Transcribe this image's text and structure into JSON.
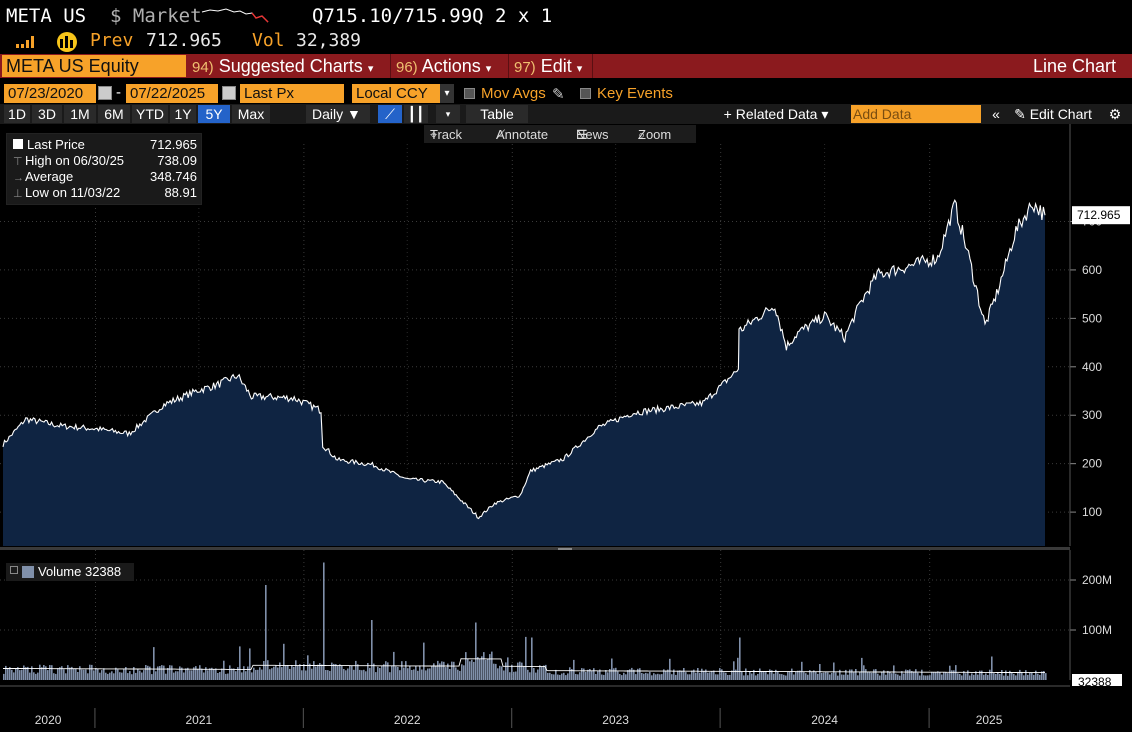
{
  "header": {
    "ticker": "META US",
    "currency_label": "$ Market",
    "bid_ask": "Q715.10/715.99Q",
    "size": "2 x 1",
    "prev_label": "Prev",
    "prev_value": "712.965",
    "vol_label": "Vol",
    "vol_value": "32,389"
  },
  "toolbar": {
    "security": "META US Equity",
    "suggested_num": "94)",
    "suggested_label": "Suggested Charts",
    "actions_num": "96)",
    "actions_label": "Actions",
    "edit_num": "97)",
    "edit_label": "Edit",
    "chart_type": "Line Chart"
  },
  "settings": {
    "start_date": "07/23/2020",
    "end_date": "07/22/2025",
    "dash": "-",
    "field": "Last Px",
    "currency": "Local CCY",
    "mov_avgs": "Mov Avgs",
    "key_events": "Key Events"
  },
  "periods": [
    "1D",
    "3D",
    "1M",
    "6M",
    "YTD",
    "1Y",
    "5Y",
    "Max"
  ],
  "active_period": "5Y",
  "controls": {
    "frequency": "Daily",
    "table": "Table",
    "related": "Related Data",
    "add_data_placeholder": "Add Data",
    "edit_chart": "Edit Chart"
  },
  "tools": {
    "track": "Track",
    "annotate": "Annotate",
    "news": "News",
    "zoom": "Zoom"
  },
  "legend": {
    "last_label": "Last Price",
    "last_value": "712.965",
    "high_label": "High on 06/30/25",
    "high_value": "738.09",
    "avg_label": "Average",
    "avg_value": "348.746",
    "low_label": "Low on 11/03/22",
    "low_value": "88.91"
  },
  "volume_legend": "Volume 32388",
  "colors": {
    "amber": "#f7a229",
    "red_bar": "#8b1a1e",
    "price_fill": "#0f2442",
    "volume_fill": "#8090aa",
    "active_blue": "#2463c9"
  },
  "chart_data": [
    {
      "type": "area",
      "series": [
        {
          "name": "Last Price"
        }
      ],
      "x": [
        "2020-07-23",
        "2020-09-01",
        "2020-11-01",
        "2021-01-01",
        "2021-03-01",
        "2021-05-01",
        "2021-07-01",
        "2021-08-01",
        "2021-09-07",
        "2021-10-01",
        "2021-11-01",
        "2021-12-15",
        "2022-01-31",
        "2022-02-03",
        "2022-03-01",
        "2022-05-01",
        "2022-07-01",
        "2022-09-01",
        "2022-11-03",
        "2022-12-01",
        "2023-01-15",
        "2023-02-02",
        "2023-04-01",
        "2023-06-01",
        "2023-08-01",
        "2023-10-01",
        "2023-12-01",
        "2024-02-01",
        "2024-02-02",
        "2024-04-05",
        "2024-04-25",
        "2024-05-15",
        "2024-07-01",
        "2024-08-05",
        "2024-09-01",
        "2024-10-01",
        "2024-12-01",
        "2025-01-15",
        "2025-02-14",
        "2025-03-10",
        "2025-04-08",
        "2025-05-01",
        "2025-06-01",
        "2025-06-30",
        "2025-07-22"
      ],
      "values": [
        240,
        292,
        278,
        272,
        262,
        322,
        352,
        362,
        382,
        338,
        338,
        335,
        310,
        238,
        208,
        198,
        168,
        162,
        89,
        118,
        135,
        185,
        210,
        275,
        305,
        315,
        325,
        395,
        474,
        527,
        442,
        470,
        505,
        460,
        530,
        590,
        610,
        625,
        735,
        630,
        485,
        560,
        680,
        738,
        713
      ],
      "ylim": [
        30,
        860
      ],
      "y_ticks": [
        100,
        200,
        300,
        400,
        500,
        600,
        700
      ],
      "last_label": "712.965"
    },
    {
      "type": "bar",
      "series": [
        {
          "name": "Volume"
        }
      ],
      "y_ticks": [
        "100M",
        "200M"
      ],
      "ylim": [
        0,
        240
      ],
      "last_label": "32388",
      "spikes_millions": [
        {
          "date": "2021-10-26",
          "value": 190
        },
        {
          "date": "2022-02-03",
          "value": 235
        },
        {
          "date": "2022-04-28",
          "value": 120
        },
        {
          "date": "2022-10-27",
          "value": 115
        },
        {
          "date": "2023-02-02",
          "value": 85
        },
        {
          "date": "2024-02-02",
          "value": 85
        }
      ]
    }
  ],
  "x_axis_labels": [
    "2020",
    "2021",
    "2022",
    "2023",
    "2024",
    "2025"
  ]
}
